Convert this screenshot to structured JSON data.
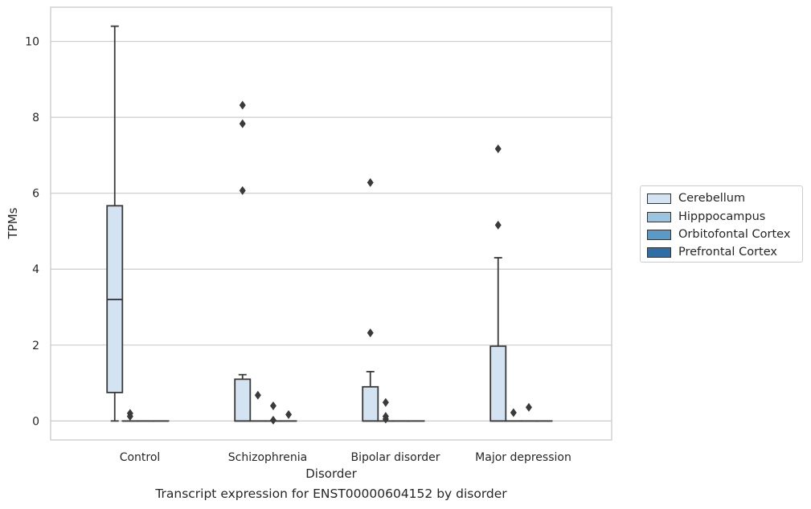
{
  "chart_data": {
    "type": "box",
    "title": "",
    "caption": "Transcript expression for ENST00000604152 by disorder",
    "xlabel": "Disorder",
    "ylabel": "TPMs",
    "ylim": [
      -0.5,
      10.9
    ],
    "yticks": [
      0,
      2,
      4,
      6,
      8,
      10
    ],
    "grid": true,
    "legend_position": "right",
    "categories": [
      "Control",
      "Schizophrenia",
      "Bipolar disorder",
      "Major depression"
    ],
    "series": [
      {
        "name": "Cerebellum",
        "color": "#d3e3f2",
        "boxes": [
          {
            "q1": 0.75,
            "median": 3.2,
            "q3": 5.67,
            "whisker_low": 0.0,
            "whisker_high": 10.4,
            "outliers": []
          },
          {
            "q1": 0.0,
            "median": 0.0,
            "q3": 1.1,
            "whisker_low": 0.0,
            "whisker_high": 1.22,
            "outliers": [
              6.07,
              7.83,
              8.32
            ]
          },
          {
            "q1": 0.0,
            "median": 0.0,
            "q3": 0.9,
            "whisker_low": 0.0,
            "whisker_high": 1.3,
            "outliers": [
              2.32,
              6.28
            ]
          },
          {
            "q1": 0.0,
            "median": 0.0,
            "q3": 1.97,
            "whisker_low": 0.0,
            "whisker_high": 4.3,
            "outliers": [
              5.16,
              7.17
            ]
          }
        ]
      },
      {
        "name": "Hipppocampus",
        "color": "#9ac4e0",
        "boxes": [
          {
            "q1": 0.0,
            "median": 0.0,
            "q3": 0.0,
            "whisker_low": 0.0,
            "whisker_high": 0.0,
            "outliers": [
              0.12,
              0.2
            ]
          },
          {
            "q1": 0.0,
            "median": 0.0,
            "q3": 0.0,
            "whisker_low": 0.0,
            "whisker_high": 0.0,
            "outliers": [
              0.68
            ]
          },
          {
            "q1": 0.0,
            "median": 0.0,
            "q3": 0.0,
            "whisker_low": 0.0,
            "whisker_high": 0.0,
            "outliers": [
              0.05,
              0.12,
              0.49
            ]
          },
          {
            "q1": 0.0,
            "median": 0.0,
            "q3": 0.0,
            "whisker_low": 0.0,
            "whisker_high": 0.0,
            "outliers": [
              0.22
            ]
          }
        ]
      },
      {
        "name": "Orbitofontal Cortex",
        "color": "#5a9ac8",
        "boxes": [
          {
            "q1": 0.0,
            "median": 0.0,
            "q3": 0.0,
            "whisker_low": 0.0,
            "whisker_high": 0.0,
            "outliers": []
          },
          {
            "q1": 0.0,
            "median": 0.0,
            "q3": 0.0,
            "whisker_low": 0.0,
            "whisker_high": 0.0,
            "outliers": [
              0.02,
              0.4
            ]
          },
          {
            "q1": 0.0,
            "median": 0.0,
            "q3": 0.0,
            "whisker_low": 0.0,
            "whisker_high": 0.0,
            "outliers": []
          },
          {
            "q1": 0.0,
            "median": 0.0,
            "q3": 0.0,
            "whisker_low": 0.0,
            "whisker_high": 0.0,
            "outliers": [
              0.36
            ]
          }
        ]
      },
      {
        "name": "Prefrontal Cortex",
        "color": "#2d6ea8",
        "boxes": [
          {
            "q1": 0.0,
            "median": 0.0,
            "q3": 0.0,
            "whisker_low": 0.0,
            "whisker_high": 0.0,
            "outliers": []
          },
          {
            "q1": 0.0,
            "median": 0.0,
            "q3": 0.0,
            "whisker_low": 0.0,
            "whisker_high": 0.0,
            "outliers": [
              0.17
            ]
          },
          {
            "q1": 0.0,
            "median": 0.0,
            "q3": 0.0,
            "whisker_low": 0.0,
            "whisker_high": 0.0,
            "outliers": []
          },
          {
            "q1": 0.0,
            "median": 0.0,
            "q3": 0.0,
            "whisker_low": 0.0,
            "whisker_high": 0.0,
            "outliers": []
          }
        ]
      }
    ]
  }
}
